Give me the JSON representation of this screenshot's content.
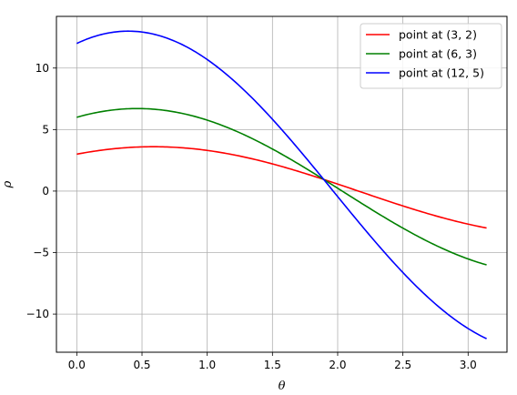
{
  "chart_data": {
    "type": "line",
    "xlabel": "θ",
    "ylabel": "ρ",
    "xlim": [
      -0.156,
      3.298
    ],
    "ylim": [
      -13.1,
      14.2
    ],
    "xticks": [
      0.0,
      0.5,
      1.0,
      1.5,
      2.0,
      2.5,
      3.0
    ],
    "xtick_labels": [
      "0.0",
      "0.5",
      "1.0",
      "1.5",
      "2.0",
      "2.5",
      "3.0"
    ],
    "yticks": [
      -10,
      -5,
      0,
      5,
      10
    ],
    "ytick_labels": [
      "−10",
      "−5",
      "0",
      "5",
      "10"
    ],
    "grid": true,
    "legend_position": "top-right",
    "x_range": [
      0,
      3.1416
    ],
    "series": [
      {
        "name": "point at (3, 2)",
        "color": "#ff0000",
        "a": 3,
        "b": 2,
        "x": [
          0.0,
          0.5,
          1.0,
          1.5,
          1.9,
          2.0,
          2.5,
          3.0,
          3.1416
        ],
        "values": [
          3.0,
          3.59,
          3.3,
          2.21,
          0.85,
          0.57,
          -1.21,
          -2.69,
          -3.0
        ]
      },
      {
        "name": "point at (6, 3)",
        "color": "#008000",
        "a": 6,
        "b": 3,
        "x": [
          0.0,
          0.5,
          1.0,
          1.5,
          1.9,
          2.0,
          2.5,
          3.0,
          3.1416
        ],
        "values": [
          6.0,
          6.7,
          5.77,
          3.42,
          0.95,
          0.23,
          -2.82,
          -5.52,
          -6.0
        ]
      },
      {
        "name": "point at (12, 5)",
        "color": "#0000ff",
        "a": 12,
        "b": 5,
        "x": [
          0.0,
          0.5,
          1.0,
          1.5,
          1.9,
          2.0,
          2.5,
          3.0,
          3.1416
        ],
        "values": [
          12.0,
          12.93,
          10.69,
          5.84,
          0.85,
          -0.45,
          -6.62,
          -11.17,
          -12.0
        ]
      }
    ]
  }
}
